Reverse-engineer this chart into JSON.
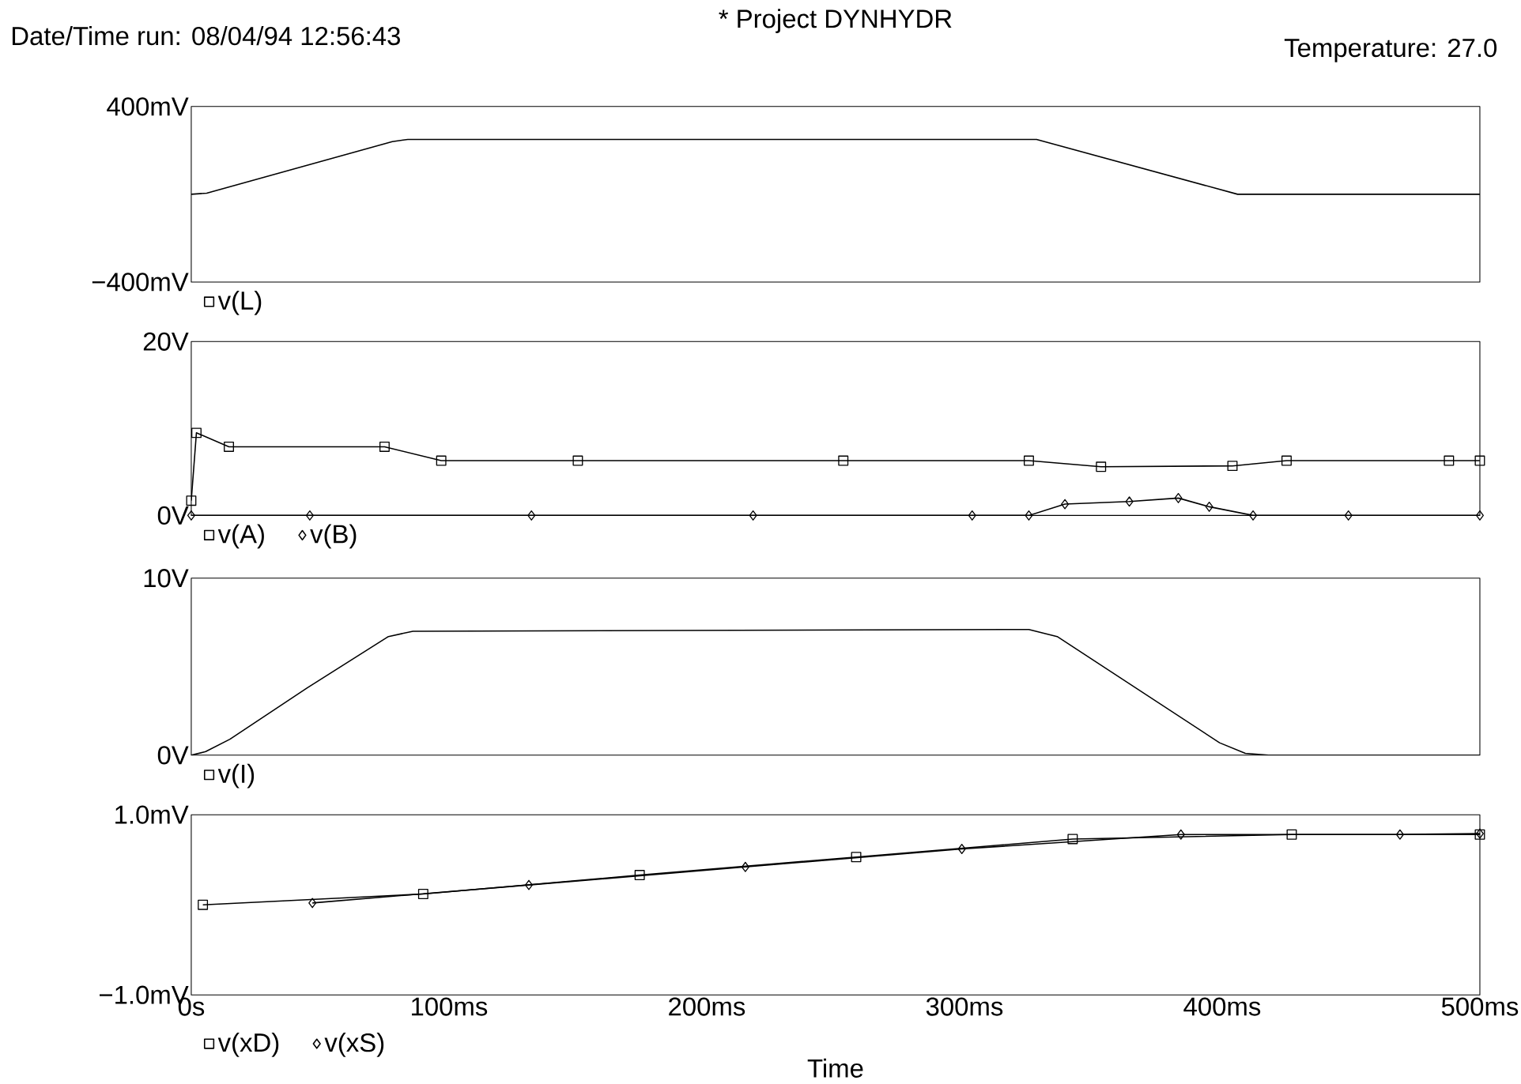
{
  "chart_data": [
    {
      "type": "line",
      "title": "* Project DYNHYDR",
      "annotations": [
        "Date/Time run: 08/04/94  12:56:43",
        "Temperature: 27.0"
      ],
      "xlim": [
        0,
        500
      ],
      "ylim": [
        -400,
        400
      ],
      "yticks": [
        {
          "value": 400,
          "label": "400mV"
        },
        {
          "value": -400,
          "label": "−400mV"
        }
      ],
      "tick_labels": "y",
      "legend": "bottom",
      "series": [
        {
          "name": "v(L)",
          "color": "#000000",
          "x": [
            0,
            6,
            78,
            84,
            328,
            406,
            500
          ],
          "values": [
            0,
            5,
            240,
            250,
            250,
            0,
            0
          ]
        }
      ]
    },
    {
      "type": "line",
      "xlim": [
        0,
        500
      ],
      "ylim": [
        0,
        20
      ],
      "yticks": [
        {
          "value": 20,
          "label": "20V"
        },
        {
          "value": 0,
          "label": "0V"
        }
      ],
      "tick_labels": "y",
      "legend": "bottom",
      "series": [
        {
          "name": "v(A)",
          "color": "#000000",
          "marker": "square",
          "x": [
            0,
            2,
            14.6,
            75,
            97,
            150,
            253,
            325,
            353,
            404,
            425,
            488,
            500
          ],
          "values": [
            1.7,
            9.5,
            7.9,
            7.9,
            6.3,
            6.3,
            6.3,
            6.3,
            5.6,
            5.7,
            6.3,
            6.3,
            6.3
          ]
        },
        {
          "name": "v(B)",
          "color": "#000000",
          "marker": "diamond",
          "x": [
            0,
            46,
            132,
            218,
            303,
            325,
            339,
            364,
            383,
            395,
            412,
            449,
            500
          ],
          "values": [
            0,
            0,
            0,
            0,
            0,
            0,
            1.3,
            1.6,
            2.0,
            1.0,
            0,
            0,
            0
          ]
        }
      ]
    },
    {
      "type": "line",
      "xlim": [
        0,
        500
      ],
      "ylim": [
        0,
        10
      ],
      "yticks": [
        {
          "value": 10,
          "label": "10V"
        },
        {
          "value": 0,
          "label": "0V"
        }
      ],
      "tick_labels": "y",
      "legend": "bottom",
      "series": [
        {
          "name": "v(I)",
          "color": "#000000",
          "x": [
            0,
            5.6,
            15,
            45,
            76.5,
            86,
            325,
            336,
            399,
            409,
            418,
            500
          ],
          "values": [
            0,
            0.2,
            0.9,
            3.8,
            6.7,
            7.0,
            7.1,
            6.7,
            0.7,
            0.1,
            0,
            0
          ]
        }
      ]
    },
    {
      "type": "line",
      "xlabel": "Time",
      "xlim": [
        0,
        500
      ],
      "ylim": [
        -1.0,
        1.0
      ],
      "xticks": [
        {
          "value": 0,
          "label": "0s"
        },
        {
          "value": 100,
          "label": "100ms"
        },
        {
          "value": 200,
          "label": "200ms"
        },
        {
          "value": 300,
          "label": "300ms"
        },
        {
          "value": 400,
          "label": "400ms"
        },
        {
          "value": 500,
          "label": "500ms"
        }
      ],
      "yticks": [
        {
          "value": 1.0,
          "label": "1.0mV"
        },
        {
          "value": -1.0,
          "label": "−1.0mV"
        }
      ],
      "legend": "bottom",
      "series": [
        {
          "name": "v(xD)",
          "color": "#000000",
          "marker": "square",
          "x": [
            4.5,
            90,
            174,
            258,
            342,
            427,
            500
          ],
          "values": [
            0,
            0.12,
            0.33,
            0.53,
            0.73,
            0.78,
            0.78
          ]
        },
        {
          "name": "v(xS)",
          "color": "#000000",
          "marker": "diamond",
          "x": [
            47,
            131,
            215,
            299,
            384,
            469,
            500
          ],
          "values": [
            0.02,
            0.22,
            0.42,
            0.62,
            0.78,
            0.78,
            0.79
          ]
        }
      ]
    }
  ]
}
